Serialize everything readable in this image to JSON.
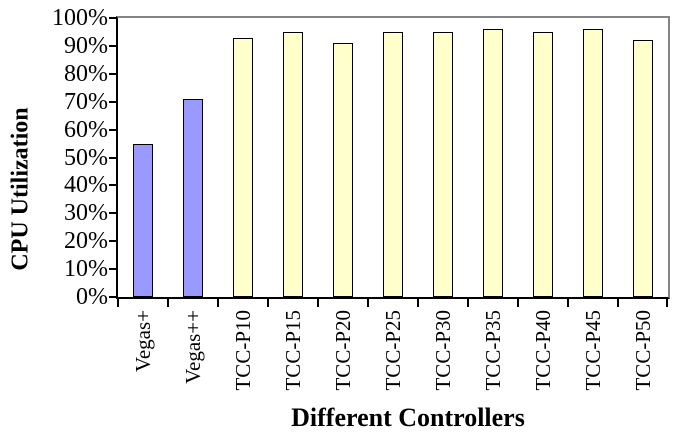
{
  "chart_data": {
    "type": "bar",
    "title": "",
    "xlabel": "Different Controllers",
    "ylabel": "CPU Utilization",
    "categories": [
      "Vegas+",
      "Vegas++",
      "TCC-P10",
      "TCC-P15",
      "TCC-P20",
      "TCC-P25",
      "TCC-P30",
      "TCC-P35",
      "TCC-P40",
      "TCC-P45",
      "TCC-P50"
    ],
    "values": [
      55,
      71,
      93,
      95,
      91,
      95,
      95,
      96,
      95,
      96,
      92
    ],
    "bar_colors": [
      "#9999FF",
      "#9999FF",
      "#FFFFCC",
      "#FFFFCC",
      "#FFFFCC",
      "#FFFFCC",
      "#FFFFCC",
      "#FFFFCC",
      "#FFFFCC",
      "#FFFFCC",
      "#FFFFCC"
    ],
    "ylim": [
      0,
      100
    ],
    "y_tick_step": 10,
    "y_tick_labels": [
      "0%",
      "10%",
      "20%",
      "30%",
      "40%",
      "50%",
      "60%",
      "70%",
      "80%",
      "90%",
      "100%"
    ],
    "grid": false,
    "legend_position": "none",
    "colors": {
      "bar_border": "#000000",
      "axis": "#000000",
      "plot_border": "#848484",
      "background": "#FFFFFF",
      "vegas_fill": "#9999FF",
      "tcc_fill": "#FFFFCC"
    }
  }
}
